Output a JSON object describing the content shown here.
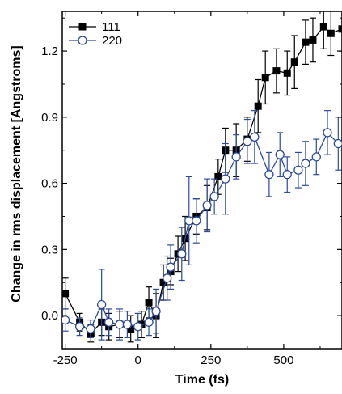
{
  "chart_data": {
    "type": "line",
    "title": "",
    "xlabel": "Time (fs)",
    "ylabel": "Change in rms displacement [Angstroms]",
    "xlim": [
      -260,
      700
    ],
    "ylim": [
      -0.15,
      1.38
    ],
    "x_ticks": [
      -250,
      0,
      250,
      500
    ],
    "x_tick_labels": [
      "-250",
      "0",
      "250",
      "500"
    ],
    "y_ticks": [
      0.0,
      0.3,
      0.6,
      0.9,
      1.2
    ],
    "y_tick_labels": [
      "0.0",
      "0.3",
      "0.6",
      "0.9",
      "1.2"
    ],
    "grid": false,
    "legend": "top-left",
    "series": [
      {
        "name": "111",
        "color": "#000000",
        "marker": "filled-square",
        "points": [
          {
            "x": -250,
            "y": 0.1,
            "err": 0.07
          },
          {
            "x": -200,
            "y": -0.03,
            "err": 0.04
          },
          {
            "x": -162,
            "y": -0.08,
            "err": 0.04
          },
          {
            "x": -125,
            "y": -0.03,
            "err": 0.06
          },
          {
            "x": -100,
            "y": -0.05,
            "err": 0.06
          },
          {
            "x": -63,
            "y": -0.04,
            "err": 0.06
          },
          {
            "x": -25,
            "y": -0.06,
            "err": 0.06
          },
          {
            "x": 12,
            "y": -0.04,
            "err": 0.06
          },
          {
            "x": 37,
            "y": 0.06,
            "err": 0.07
          },
          {
            "x": 62,
            "y": 0.0,
            "err": 0.1
          },
          {
            "x": 87,
            "y": 0.15,
            "err": 0.08
          },
          {
            "x": 112,
            "y": 0.2,
            "err": 0.06
          },
          {
            "x": 137,
            "y": 0.28,
            "err": 0.08
          },
          {
            "x": 162,
            "y": 0.35,
            "err": 0.1
          },
          {
            "x": 200,
            "y": 0.45,
            "err": 0.08
          },
          {
            "x": 237,
            "y": 0.49,
            "err": 0.1
          },
          {
            "x": 275,
            "y": 0.63,
            "err": 0.08
          },
          {
            "x": 300,
            "y": 0.75,
            "err": 0.1
          },
          {
            "x": 337,
            "y": 0.75,
            "err": 0.12
          },
          {
            "x": 375,
            "y": 0.8,
            "err": 0.1
          },
          {
            "x": 412,
            "y": 0.95,
            "err": 0.12
          },
          {
            "x": 437,
            "y": 1.08,
            "err": 0.12
          },
          {
            "x": 475,
            "y": 1.11,
            "err": 0.1
          },
          {
            "x": 512,
            "y": 1.1,
            "err": 0.1
          },
          {
            "x": 537,
            "y": 1.15,
            "err": 0.12
          },
          {
            "x": 575,
            "y": 1.24,
            "err": 0.1
          },
          {
            "x": 600,
            "y": 1.25,
            "err": 0.1
          },
          {
            "x": 637,
            "y": 1.31,
            "err": 0.1
          },
          {
            "x": 662,
            "y": 1.28,
            "err": 0.1
          },
          {
            "x": 700,
            "y": 1.3,
            "err": 0.1
          }
        ]
      },
      {
        "name": "220",
        "color": "#2b4a9c",
        "marker": "open-circle",
        "points": [
          {
            "x": -250,
            "y": -0.02,
            "err": 0.05
          },
          {
            "x": -200,
            "y": -0.05,
            "err": 0.04
          },
          {
            "x": -163,
            "y": -0.06,
            "err": 0.04
          },
          {
            "x": -125,
            "y": 0.05,
            "err": 0.16
          },
          {
            "x": -100,
            "y": -0.03,
            "err": 0.06
          },
          {
            "x": -63,
            "y": -0.04,
            "err": 0.07
          },
          {
            "x": -37,
            "y": -0.04,
            "err": 0.06
          },
          {
            "x": 0,
            "y": -0.05,
            "err": 0.06
          },
          {
            "x": 37,
            "y": -0.03,
            "err": 0.06
          },
          {
            "x": 62,
            "y": 0.02,
            "err": 0.1
          },
          {
            "x": 100,
            "y": 0.17,
            "err": 0.1
          },
          {
            "x": 112,
            "y": 0.22,
            "err": 0.1
          },
          {
            "x": 150,
            "y": 0.28,
            "err": 0.12
          },
          {
            "x": 175,
            "y": 0.43,
            "err": 0.2
          },
          {
            "x": 200,
            "y": 0.43,
            "err": 0.1
          },
          {
            "x": 237,
            "y": 0.5,
            "err": 0.12
          },
          {
            "x": 262,
            "y": 0.54,
            "err": 0.08
          },
          {
            "x": 300,
            "y": 0.62,
            "err": 0.16
          },
          {
            "x": 337,
            "y": 0.72,
            "err": 0.1
          },
          {
            "x": 375,
            "y": 0.79,
            "err": 0.1
          },
          {
            "x": 400,
            "y": 0.81,
            "err": 0.12
          },
          {
            "x": 450,
            "y": 0.64,
            "err": 0.1
          },
          {
            "x": 487,
            "y": 0.73,
            "err": 0.1
          },
          {
            "x": 512,
            "y": 0.64,
            "err": 0.08
          },
          {
            "x": 550,
            "y": 0.66,
            "err": 0.08
          },
          {
            "x": 575,
            "y": 0.69,
            "err": 0.1
          },
          {
            "x": 612,
            "y": 0.72,
            "err": 0.08
          },
          {
            "x": 650,
            "y": 0.83,
            "err": 0.1
          },
          {
            "x": 687,
            "y": 0.78,
            "err": 0.12
          }
        ]
      }
    ]
  }
}
